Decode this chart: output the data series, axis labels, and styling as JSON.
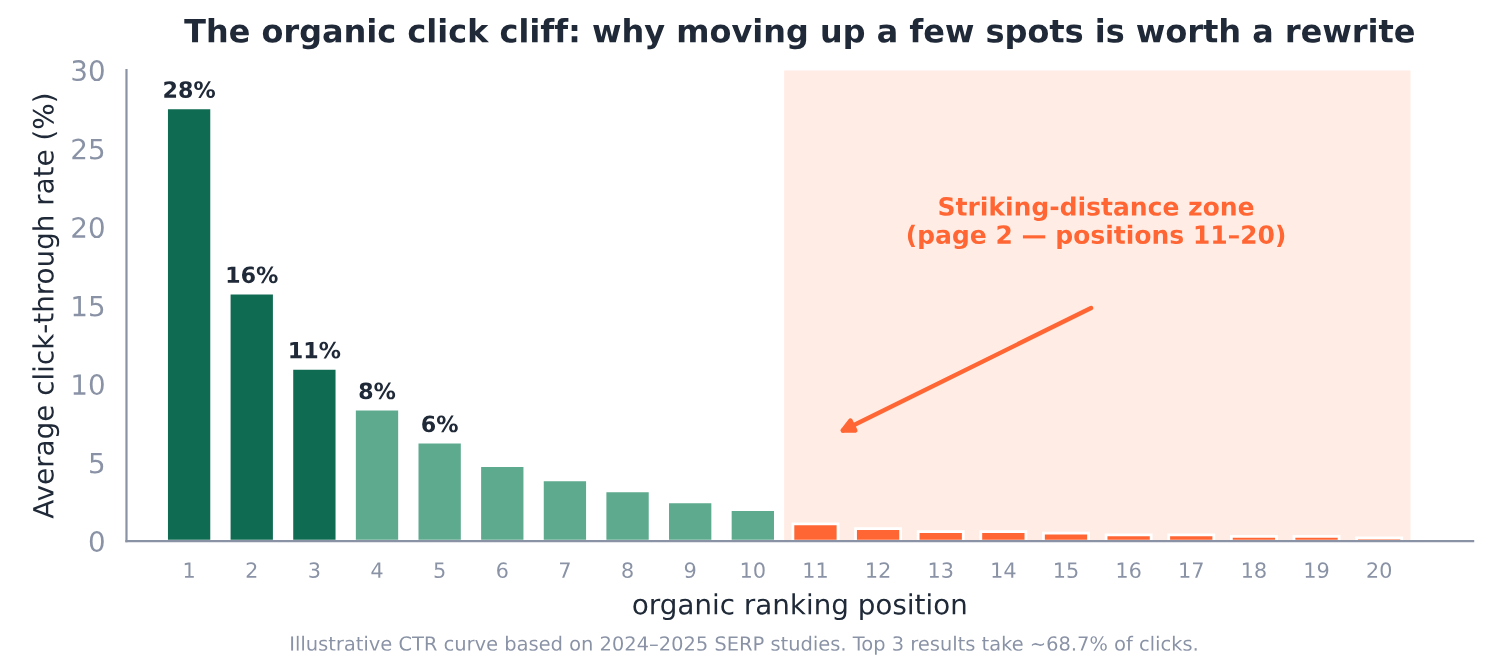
{
  "chart_data": {
    "type": "bar",
    "title": "The organic click cliff: why moving up a few spots is worth a rewrite",
    "xlabel": "organic ranking position",
    "ylabel": "Average click-through rate (%)",
    "x": [
      1,
      2,
      3,
      4,
      5,
      6,
      7,
      8,
      9,
      10,
      11,
      12,
      13,
      14,
      15,
      16,
      17,
      18,
      19,
      20
    ],
    "values": [
      27.6,
      15.8,
      11.0,
      8.4,
      6.3,
      4.8,
      3.9,
      3.2,
      2.5,
      2.0,
      1.1,
      0.8,
      0.6,
      0.6,
      0.5,
      0.4,
      0.4,
      0.3,
      0.3,
      0.2
    ],
    "colors": [
      "#0f6b52",
      "#0f6b52",
      "#0f6b52",
      "#5daa8e",
      "#5daa8e",
      "#5daa8e",
      "#5daa8e",
      "#5daa8e",
      "#5daa8e",
      "#5daa8e",
      "#ff6633",
      "#ff6633",
      "#ff6633",
      "#ff6633",
      "#ff6633",
      "#ff6633",
      "#ff6633",
      "#ff6633",
      "#ff6633",
      "#ff6633"
    ],
    "value_labels": [
      "28%",
      "16%",
      "11%",
      "8%",
      "6%",
      null,
      null,
      null,
      null,
      null,
      null,
      null,
      null,
      null,
      null,
      null,
      null,
      null,
      null,
      null
    ],
    "xlim": [
      0,
      21.5
    ],
    "xticks": [
      1,
      2,
      3,
      4,
      5,
      6,
      7,
      8,
      9,
      10,
      11,
      12,
      13,
      14,
      15,
      16,
      17,
      18,
      19,
      20
    ],
    "ylim": [
      0,
      30
    ],
    "yticks": [
      0,
      5,
      10,
      15,
      20,
      25,
      30
    ],
    "bands": [
      {
        "axis": "x",
        "from": 10.5,
        "to": 20.5,
        "color": "#ffede5"
      }
    ],
    "annotations": [
      "Striking-distance zone\n(page 2 — positions 11–20)",
      "Illustrative CTR curve based on 2024–2025 SERP studies. Top 3 results take ~68.7% of clicks."
    ],
    "grid": false
  }
}
